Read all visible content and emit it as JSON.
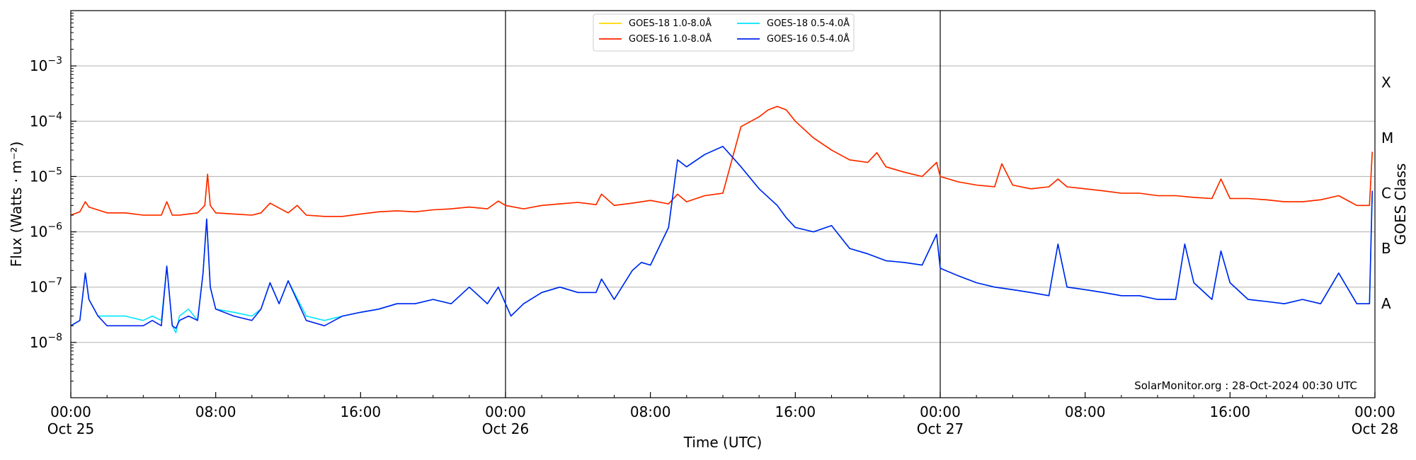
{
  "chart_data": {
    "type": "line",
    "xlabel": "Time (UTC)",
    "ylabel": "Flux (Watts · m⁻²)",
    "y2label": "GOES Class",
    "y_scale": "log",
    "ylim": [
      1e-09,
      0.01
    ],
    "xlim_hours": [
      0,
      72
    ],
    "grid": "horizontal",
    "legend_placement": "top-center",
    "watermark": "SolarMonitor.org : 28-Oct-2024 00:30 UTC",
    "y_ticks": [
      {
        "value": 1e-08,
        "base": "10",
        "exp": "−8"
      },
      {
        "value": 1e-07,
        "base": "10",
        "exp": "−7"
      },
      {
        "value": 1e-06,
        "base": "10",
        "exp": "−6"
      },
      {
        "value": 1e-05,
        "base": "10",
        "exp": "−5"
      },
      {
        "value": 0.0001,
        "base": "10",
        "exp": "−4"
      },
      {
        "value": 0.001,
        "base": "10",
        "exp": "−3"
      }
    ],
    "x_ticks": [
      {
        "hour": 0,
        "time": "00:00",
        "date": "Oct 25"
      },
      {
        "hour": 8,
        "time": "08:00",
        "date": ""
      },
      {
        "hour": 16,
        "time": "16:00",
        "date": ""
      },
      {
        "hour": 24,
        "time": "00:00",
        "date": "Oct 26"
      },
      {
        "hour": 32,
        "time": "08:00",
        "date": ""
      },
      {
        "hour": 40,
        "time": "16:00",
        "date": ""
      },
      {
        "hour": 48,
        "time": "00:00",
        "date": "Oct 27"
      },
      {
        "hour": 56,
        "time": "08:00",
        "date": ""
      },
      {
        "hour": 64,
        "time": "16:00",
        "date": ""
      },
      {
        "hour": 72,
        "time": "00:00",
        "date": "Oct 28"
      }
    ],
    "day_lines_hours": [
      24,
      48
    ],
    "goes_classes": [
      {
        "label": "A",
        "value": 5e-08
      },
      {
        "label": "B",
        "value": 5e-07
      },
      {
        "label": "C",
        "value": 5e-06
      },
      {
        "label": "M",
        "value": 5e-05
      },
      {
        "label": "X",
        "value": 0.0005
      }
    ],
    "series": [
      {
        "name": "GOES-18 1.0-8.0Å",
        "color": "#ffd700",
        "x": [
          0,
          0.5,
          0.8,
          1,
          2,
          3,
          4,
          5,
          5.3,
          5.6,
          6,
          7,
          7.4,
          7.55,
          7.7,
          8,
          9,
          10,
          10.5,
          11,
          12,
          12.5,
          13,
          14,
          15,
          16,
          17,
          18,
          19,
          20,
          21,
          22,
          23,
          23.6,
          24,
          25,
          26,
          27,
          28,
          29,
          29.3,
          30,
          31,
          32,
          33,
          33.5,
          34,
          35,
          36,
          37,
          38,
          38.5,
          39,
          39.5,
          40,
          41,
          42,
          43,
          44,
          44.5,
          45,
          46,
          47,
          47.8,
          48,
          49,
          50,
          51,
          51.4,
          52,
          53,
          54,
          54.5,
          55,
          56,
          57,
          58,
          59,
          60,
          61,
          62,
          63,
          63.5,
          64,
          65,
          66,
          67,
          68,
          69,
          70,
          71,
          71.7,
          71.85
        ],
        "y": [
          2e-06,
          2.3e-06,
          3.5e-06,
          2.8e-06,
          2.2e-06,
          2.2e-06,
          2e-06,
          2e-06,
          3.5e-06,
          2e-06,
          2e-06,
          2.2e-06,
          3e-06,
          1.1e-05,
          3e-06,
          2.2e-06,
          2.1e-06,
          2e-06,
          2.2e-06,
          3.3e-06,
          2.2e-06,
          3e-06,
          2e-06,
          1.9e-06,
          1.9e-06,
          2.1e-06,
          2.3e-06,
          2.4e-06,
          2.3e-06,
          2.5e-06,
          2.6e-06,
          2.8e-06,
          2.6e-06,
          3.6e-06,
          3e-06,
          2.6e-06,
          3e-06,
          3.2e-06,
          3.4e-06,
          3.1e-06,
          4.8e-06,
          3e-06,
          3.3e-06,
          3.7e-06,
          3.2e-06,
          4.8e-06,
          3.5e-06,
          4.5e-06,
          5e-06,
          8e-05,
          0.00012,
          0.00016,
          0.000185,
          0.00016,
          0.0001,
          5e-05,
          3e-05,
          2e-05,
          1.8e-05,
          2.7e-05,
          1.5e-05,
          1.2e-05,
          1e-05,
          1.8e-05,
          1e-05,
          8e-06,
          7e-06,
          6.5e-06,
          1.7e-05,
          7e-06,
          6e-06,
          6.5e-06,
          9e-06,
          6.5e-06,
          6e-06,
          5.5e-06,
          5e-06,
          5e-06,
          4.5e-06,
          4.5e-06,
          4.2e-06,
          4e-06,
          9e-06,
          4e-06,
          4e-06,
          3.8e-06,
          3.5e-06,
          3.5e-06,
          3.8e-06,
          4.5e-06,
          3e-06,
          3e-06,
          2.6e-05
        ]
      },
      {
        "name": "GOES-16 1.0-8.0Å",
        "color": "#ff2200",
        "x": [
          0,
          0.5,
          0.8,
          1,
          2,
          3,
          4,
          5,
          5.3,
          5.6,
          6,
          7,
          7.4,
          7.55,
          7.7,
          8,
          9,
          10,
          10.5,
          11,
          12,
          12.5,
          13,
          14,
          15,
          16,
          17,
          18,
          19,
          20,
          21,
          22,
          23,
          23.6,
          24,
          25,
          26,
          27,
          28,
          29,
          29.3,
          30,
          31,
          32,
          33,
          33.5,
          34,
          35,
          36,
          37,
          38,
          38.5,
          39,
          39.5,
          40,
          41,
          42,
          43,
          44,
          44.5,
          45,
          46,
          47,
          47.8,
          48,
          49,
          50,
          51,
          51.4,
          52,
          53,
          54,
          54.5,
          55,
          56,
          57,
          58,
          59,
          60,
          61,
          62,
          63,
          63.5,
          64,
          65,
          66,
          67,
          68,
          69,
          70,
          71,
          71.7,
          71.85
        ],
        "y": [
          2e-06,
          2.3e-06,
          3.5e-06,
          2.8e-06,
          2.2e-06,
          2.2e-06,
          2e-06,
          2e-06,
          3.5e-06,
          2e-06,
          2e-06,
          2.2e-06,
          3e-06,
          1.1e-05,
          3e-06,
          2.2e-06,
          2.1e-06,
          2e-06,
          2.2e-06,
          3.3e-06,
          2.2e-06,
          3e-06,
          2e-06,
          1.9e-06,
          1.9e-06,
          2.1e-06,
          2.3e-06,
          2.4e-06,
          2.3e-06,
          2.5e-06,
          2.6e-06,
          2.8e-06,
          2.6e-06,
          3.6e-06,
          3e-06,
          2.6e-06,
          3e-06,
          3.2e-06,
          3.4e-06,
          3.1e-06,
          4.8e-06,
          3e-06,
          3.3e-06,
          3.7e-06,
          3.2e-06,
          4.8e-06,
          3.5e-06,
          4.5e-06,
          5e-06,
          8e-05,
          0.00012,
          0.00016,
          0.000185,
          0.00016,
          0.0001,
          5e-05,
          3e-05,
          2e-05,
          1.8e-05,
          2.7e-05,
          1.5e-05,
          1.2e-05,
          1e-05,
          1.8e-05,
          1e-05,
          8e-06,
          7e-06,
          6.5e-06,
          1.7e-05,
          7e-06,
          6e-06,
          6.5e-06,
          9e-06,
          6.5e-06,
          6e-06,
          5.5e-06,
          5e-06,
          5e-06,
          4.5e-06,
          4.5e-06,
          4.2e-06,
          4e-06,
          9e-06,
          4e-06,
          4e-06,
          3.8e-06,
          3.5e-06,
          3.5e-06,
          3.8e-06,
          4.5e-06,
          3e-06,
          3e-06,
          2.8e-05
        ]
      },
      {
        "name": "GOES-18 0.5-4.0Å",
        "color": "#00e5ff",
        "x": [
          0,
          0.5,
          0.8,
          1,
          1.5,
          2,
          3,
          4,
          4.5,
          5,
          5.3,
          5.6,
          5.8,
          6,
          6.5,
          7,
          7.3,
          7.5,
          7.7,
          8,
          9,
          10,
          10.5,
          11,
          11.5,
          12,
          13,
          14,
          15,
          16,
          17,
          18,
          19,
          20,
          21,
          22,
          23,
          23.6,
          24,
          24.3,
          25,
          26,
          27,
          28,
          29,
          29.3,
          30,
          31,
          31.5,
          32,
          33,
          33.5,
          34,
          35,
          36,
          37,
          38,
          39,
          39.5,
          40,
          41,
          42,
          43,
          44,
          45,
          46,
          47,
          47.8,
          48,
          49,
          50,
          51,
          52,
          53,
          54,
          54.5,
          55,
          56,
          57,
          58,
          59,
          60,
          61,
          61.5,
          62,
          63,
          63.5,
          64,
          65,
          66,
          67,
          68,
          69,
          70,
          71,
          71.7,
          71.85
        ],
        "y": [
          2e-08,
          2.5e-08,
          1.8e-07,
          6e-08,
          3e-08,
          3e-08,
          3e-08,
          2.5e-08,
          3e-08,
          2.5e-08,
          2.4e-07,
          2e-08,
          1.5e-08,
          3e-08,
          4e-08,
          2.5e-08,
          1.8e-07,
          1.7e-06,
          1e-07,
          4e-08,
          3.5e-08,
          3e-08,
          4e-08,
          1.2e-07,
          5e-08,
          1.3e-07,
          3e-08,
          2.5e-08,
          3e-08,
          3.5e-08,
          4e-08,
          5e-08,
          5e-08,
          6e-08,
          5e-08,
          1e-07,
          5e-08,
          1e-07,
          5e-08,
          3e-08,
          5e-08,
          8e-08,
          1e-07,
          8e-08,
          8e-08,
          1.4e-07,
          6e-08,
          2e-07,
          2.8e-07,
          2.5e-07,
          1.2e-06,
          2e-05,
          1.5e-05,
          2.5e-05,
          3.5e-05,
          1.5e-05,
          6e-06,
          3e-06,
          1.8e-06,
          1.2e-06,
          1e-06,
          1.3e-06,
          5e-07,
          4e-07,
          3e-07,
          2.8e-07,
          2.5e-07,
          9e-07,
          2.2e-07,
          1.6e-07,
          1.2e-07,
          1e-07,
          9e-08,
          8e-08,
          7e-08,
          6e-07,
          1e-07,
          9e-08,
          8e-08,
          7e-08,
          7e-08,
          6e-08,
          6e-08,
          6e-07,
          1.2e-07,
          6e-08,
          4.5e-07,
          1.2e-07,
          6e-08,
          5.5e-08,
          5e-08,
          6e-08,
          5e-08,
          1.8e-07,
          5e-08,
          5e-08,
          5e-06
        ]
      },
      {
        "name": "GOES-16 0.5-4.0Å",
        "color": "#0022ee",
        "x": [
          0,
          0.5,
          0.8,
          1,
          1.5,
          2,
          3,
          4,
          4.5,
          5,
          5.3,
          5.6,
          5.8,
          6,
          6.5,
          7,
          7.3,
          7.5,
          7.7,
          8,
          9,
          10,
          10.5,
          11,
          11.5,
          12,
          13,
          14,
          15,
          16,
          17,
          18,
          19,
          20,
          21,
          22,
          23,
          23.6,
          24,
          24.3,
          25,
          26,
          27,
          28,
          29,
          29.3,
          30,
          31,
          31.5,
          32,
          33,
          33.5,
          34,
          35,
          36,
          37,
          38,
          39,
          39.5,
          40,
          41,
          42,
          43,
          44,
          45,
          46,
          47,
          47.8,
          48,
          49,
          50,
          51,
          52,
          53,
          54,
          54.5,
          55,
          56,
          57,
          58,
          59,
          60,
          61,
          61.5,
          62,
          63,
          63.5,
          64,
          65,
          66,
          67,
          68,
          69,
          70,
          71,
          71.7,
          71.85
        ],
        "y": [
          2e-08,
          2.5e-08,
          1.8e-07,
          6e-08,
          3e-08,
          2e-08,
          2e-08,
          2e-08,
          2.5e-08,
          2e-08,
          2.4e-07,
          2e-08,
          1.8e-08,
          2.5e-08,
          3e-08,
          2.5e-08,
          1.8e-07,
          1.7e-06,
          1e-07,
          4e-08,
          3e-08,
          2.5e-08,
          4e-08,
          1.2e-07,
          5e-08,
          1.3e-07,
          2.5e-08,
          2e-08,
          3e-08,
          3.5e-08,
          4e-08,
          5e-08,
          5e-08,
          6e-08,
          5e-08,
          1e-07,
          5e-08,
          1e-07,
          5e-08,
          3e-08,
          5e-08,
          8e-08,
          1e-07,
          8e-08,
          8e-08,
          1.4e-07,
          6e-08,
          2e-07,
          2.8e-07,
          2.5e-07,
          1.2e-06,
          2e-05,
          1.5e-05,
          2.5e-05,
          3.5e-05,
          1.5e-05,
          6e-06,
          3e-06,
          1.8e-06,
          1.2e-06,
          1e-06,
          1.3e-06,
          5e-07,
          4e-07,
          3e-07,
          2.8e-07,
          2.5e-07,
          9e-07,
          2.2e-07,
          1.6e-07,
          1.2e-07,
          1e-07,
          9e-08,
          8e-08,
          7e-08,
          6e-07,
          1e-07,
          9e-08,
          8e-08,
          7e-08,
          7e-08,
          6e-08,
          6e-08,
          6e-07,
          1.2e-07,
          6e-08,
          4.5e-07,
          1.2e-07,
          6e-08,
          5.5e-08,
          5e-08,
          6e-08,
          5e-08,
          1.8e-07,
          5e-08,
          5e-08,
          5.5e-06
        ]
      }
    ]
  }
}
